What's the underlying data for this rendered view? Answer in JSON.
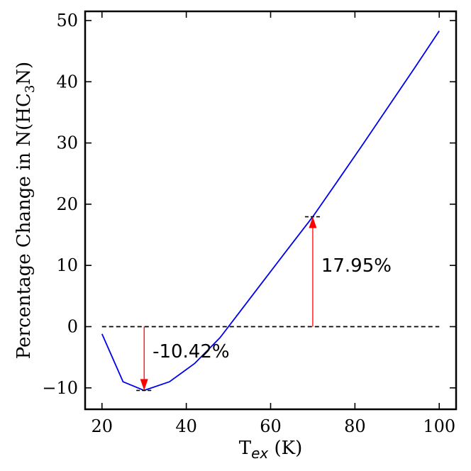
{
  "chart_data": {
    "type": "line",
    "xlabel": {
      "main": "T",
      "sub": "ex",
      "unit": " (K)"
    },
    "ylabel": {
      "pre": "Percentage Change in N(HC",
      "sub": "3",
      "post": "N)"
    },
    "xlim": [
      16,
      104
    ],
    "ylim": [
      -13.5,
      51.5
    ],
    "xticks": [
      20,
      40,
      60,
      80,
      100
    ],
    "yticks": [
      -10,
      0,
      10,
      20,
      30,
      40,
      50
    ],
    "ytick_labels": [
      "−10",
      "0",
      "10",
      "20",
      "30",
      "40",
      "50"
    ],
    "grid": false,
    "series": [
      {
        "name": "percentage change",
        "color": "#0000ee",
        "x": [
          20,
          25,
          30,
          36,
          42,
          48,
          52,
          58,
          64,
          70,
          76,
          82,
          88,
          94,
          100
        ],
        "y": [
          -1.2,
          -9.0,
          -10.42,
          -9.0,
          -6.0,
          -1.8,
          1.8,
          7.2,
          12.6,
          17.95,
          23.9,
          29.9,
          36.0,
          42.1,
          48.3
        ]
      }
    ],
    "reference_line": {
      "y": 0,
      "x_range": [
        20,
        100
      ],
      "style": "dashed",
      "color": "#000000"
    },
    "annotations": [
      {
        "text": "-10.42%",
        "arrow_x": 30,
        "from_y": 0,
        "to_y": -10.42,
        "label_x": 32,
        "label_y": -4.0,
        "color": "#ff0000"
      },
      {
        "text": "17.95%",
        "arrow_x": 70,
        "from_y": 0,
        "to_y": 17.95,
        "label_x": 72,
        "label_y": 10.0,
        "color": "#ff0000"
      }
    ],
    "extremum_markers": [
      {
        "x": 30,
        "y": -10.42
      },
      {
        "x": 70,
        "y": 17.95
      }
    ]
  }
}
